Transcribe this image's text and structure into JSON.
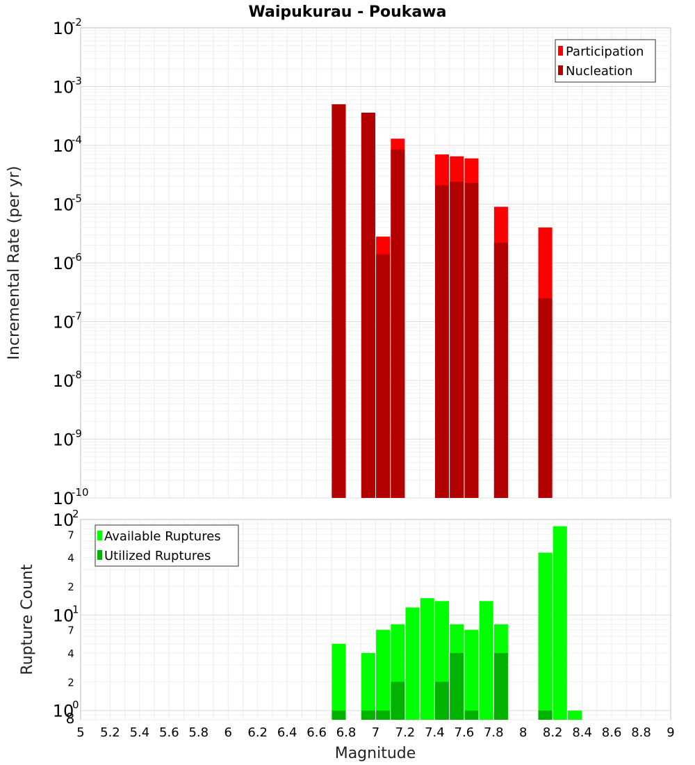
{
  "chart_data": [
    {
      "type": "bar",
      "title": "Waipukurau - Poukawa",
      "xlabel": "",
      "ylabel": "Incremental Rate (per yr)",
      "yscale": "log",
      "ylim": [
        1e-10,
        0.01
      ],
      "xlim": [
        5,
        9
      ],
      "y_tick_labels": [
        {
          "base": "10",
          "exp": "-10"
        },
        {
          "base": "10",
          "exp": "-9"
        },
        {
          "base": "10",
          "exp": "-8"
        },
        {
          "base": "10",
          "exp": "-7"
        },
        {
          "base": "10",
          "exp": "-6"
        },
        {
          "base": "10",
          "exp": "-5"
        },
        {
          "base": "10",
          "exp": "-4"
        },
        {
          "base": "10",
          "exp": "-3"
        },
        {
          "base": "10",
          "exp": "-2"
        }
      ],
      "legend": {
        "position": "top-right",
        "entries": [
          {
            "label": "Participation",
            "color": "#ff0000"
          },
          {
            "label": "Nucleation",
            "color": "#b30000"
          }
        ]
      },
      "grid": true,
      "series": [
        {
          "name": "Participation",
          "color": "#ff0000",
          "x": [
            6.75,
            6.95,
            7.05,
            7.15,
            7.45,
            7.55,
            7.65,
            7.85,
            8.15
          ],
          "values": [
            0.0005,
            0.00036,
            2.8e-06,
            0.00013,
            7e-05,
            6.5e-05,
            6e-05,
            9e-06,
            4e-06
          ]
        },
        {
          "name": "Nucleation",
          "color": "#b30000",
          "x": [
            6.75,
            6.95,
            7.05,
            7.15,
            7.45,
            7.55,
            7.65,
            7.85,
            8.15
          ],
          "values": [
            0.0005,
            0.00036,
            1.4e-06,
            8.5e-05,
            2.1e-05,
            2.4e-05,
            2.3e-05,
            2.2e-06,
            2.5e-07
          ]
        }
      ]
    },
    {
      "type": "bar",
      "title": "",
      "xlabel": "Magnitude",
      "ylabel": "Rupture Count",
      "yscale": "log",
      "ylim": [
        0.8,
        100
      ],
      "xlim": [
        5,
        9
      ],
      "x_ticks": [
        "5",
        "5.2",
        "5.4",
        "5.6",
        "5.8",
        "6",
        "6.2",
        "6.4",
        "6.6",
        "6.8",
        "7",
        "7.2",
        "7.4",
        "7.6",
        "7.8",
        "8",
        "8.2",
        "8.4",
        "8.6",
        "8.8",
        "9"
      ],
      "y_major_ticks": [
        {
          "value": 1,
          "base": "10",
          "exp": "0"
        },
        {
          "value": 10,
          "base": "10",
          "exp": "1"
        },
        {
          "value": 100,
          "base": "10",
          "exp": "2"
        }
      ],
      "y_minor_ticks": [
        {
          "value": 0.8,
          "label": "8"
        },
        {
          "value": 2,
          "label": "2"
        },
        {
          "value": 4,
          "label": "4"
        },
        {
          "value": 7,
          "label": "7"
        },
        {
          "value": 20,
          "label": "2"
        },
        {
          "value": 40,
          "label": "4"
        },
        {
          "value": 70,
          "label": "7"
        }
      ],
      "legend": {
        "position": "top-left",
        "entries": [
          {
            "label": "Available Ruptures",
            "color": "#00ff00"
          },
          {
            "label": "Utilized Ruptures",
            "color": "#00b300"
          }
        ]
      },
      "grid": true,
      "series": [
        {
          "name": "Available Ruptures",
          "color": "#00ff00",
          "x": [
            6.75,
            6.95,
            7.05,
            7.15,
            7.25,
            7.35,
            7.45,
            7.55,
            7.65,
            7.75,
            7.85,
            8.15,
            8.25,
            8.35
          ],
          "values": [
            5,
            4,
            7,
            8,
            12,
            15,
            14,
            8,
            7,
            14,
            8,
            45,
            85,
            1
          ]
        },
        {
          "name": "Utilized Ruptures",
          "color": "#00b300",
          "x": [
            6.75,
            6.95,
            7.05,
            7.15,
            7.45,
            7.55,
            7.65,
            7.85,
            8.15
          ],
          "values": [
            1,
            1,
            1,
            2,
            2,
            4,
            1,
            4,
            1
          ]
        }
      ]
    }
  ]
}
